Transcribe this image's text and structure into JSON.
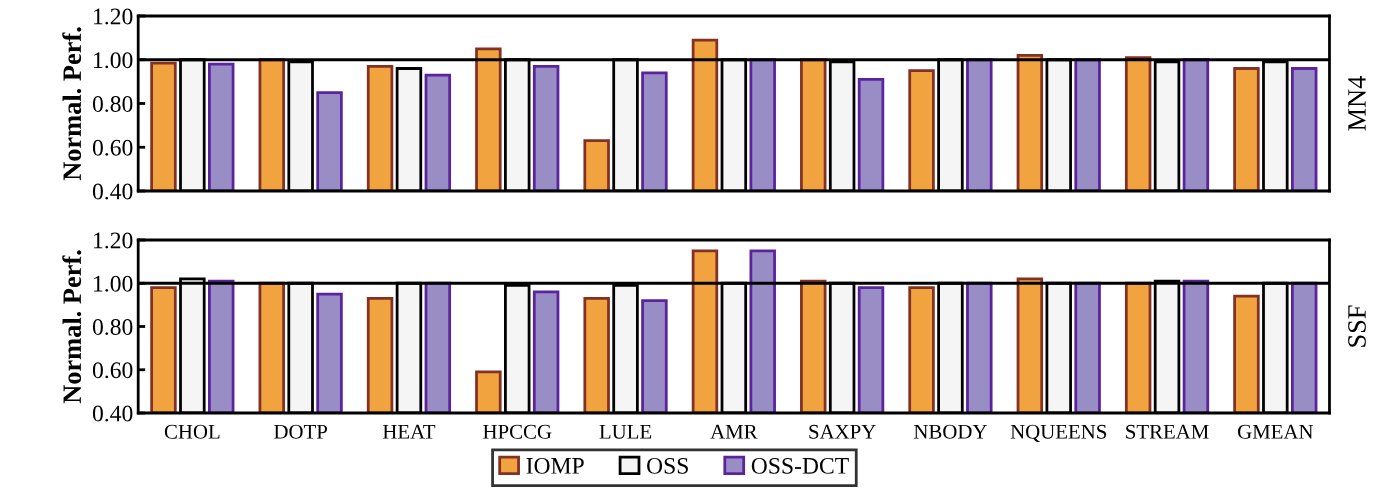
{
  "chart_data": [
    {
      "type": "bar",
      "ylabel": "Normal. Perf.",
      "annotations": [
        "MN4"
      ],
      "categories": [
        null,
        null,
        null,
        null,
        null,
        null,
        null,
        null,
        null,
        null,
        null
      ],
      "series": [
        {
          "name": "IOMP",
          "color": "#f0a33e",
          "values": [
            0.985,
            1.0,
            0.97,
            1.05,
            0.63,
            1.09,
            1.0,
            0.95,
            1.02,
            1.01,
            0.96
          ]
        },
        {
          "name": "OSS",
          "color": "#f5f5f5",
          "values": [
            1.0,
            0.99,
            0.96,
            1.0,
            1.0,
            1.0,
            0.99,
            1.0,
            1.0,
            0.99,
            0.99
          ]
        },
        {
          "name": "OSS-DCT",
          "color": "#998dc6",
          "values": [
            0.98,
            0.85,
            0.93,
            0.97,
            0.94,
            1.0,
            0.91,
            1.0,
            1.0,
            1.0,
            0.96
          ]
        }
      ],
      "ylim": [
        0.4,
        1.2
      ],
      "yticks": [
        {
          "value": 0.4,
          "label": "0.40"
        },
        {
          "value": 0.6,
          "label": "0.60"
        },
        {
          "value": 0.8,
          "label": "0.80"
        },
        {
          "value": 1.0,
          "label": "1.00"
        },
        {
          "value": 1.2,
          "label": "1.20"
        }
      ],
      "ref_lines": [
        {
          "axis": "y",
          "value": 1.0,
          "color": "#000000"
        }
      ],
      "tick_labels": "y",
      "grid": false,
      "legend": "bottom"
    },
    {
      "type": "bar",
      "ylabel": "Normal. Perf.",
      "annotations": [
        "SSF"
      ],
      "categories": [
        "CHOL",
        "DOTP",
        "HEAT",
        "HPCCG",
        "LULE",
        "AMR",
        "SAXPY",
        "NBODY",
        "NQUEENS",
        "STREAM",
        "GMEAN"
      ],
      "series": [
        {
          "color": "#f0a33e",
          "values": [
            0.98,
            1.0,
            0.93,
            0.59,
            0.93,
            1.15,
            1.01,
            0.98,
            1.02,
            1.0,
            0.94
          ]
        },
        {
          "color": "#f5f5f5",
          "values": [
            1.02,
            1.0,
            1.0,
            0.99,
            0.99,
            1.0,
            1.0,
            1.0,
            1.0,
            1.01,
            1.0
          ]
        },
        {
          "color": "#998dc6",
          "values": [
            1.01,
            0.95,
            1.0,
            0.96,
            0.92,
            1.15,
            0.98,
            1.0,
            1.0,
            1.01,
            1.0
          ]
        }
      ],
      "ylim": [
        0.4,
        1.2
      ],
      "yticks": [
        {
          "value": 0.4,
          "label": "0.40"
        },
        {
          "value": 0.6,
          "label": "0.60"
        },
        {
          "value": 0.8,
          "label": "0.80"
        },
        {
          "value": 1.0,
          "label": "1.00"
        },
        {
          "value": 1.2,
          "label": "1.20"
        }
      ],
      "ref_lines": [
        {
          "axis": "y",
          "value": 1.0,
          "color": "#000000"
        }
      ],
      "grid": false
    }
  ]
}
